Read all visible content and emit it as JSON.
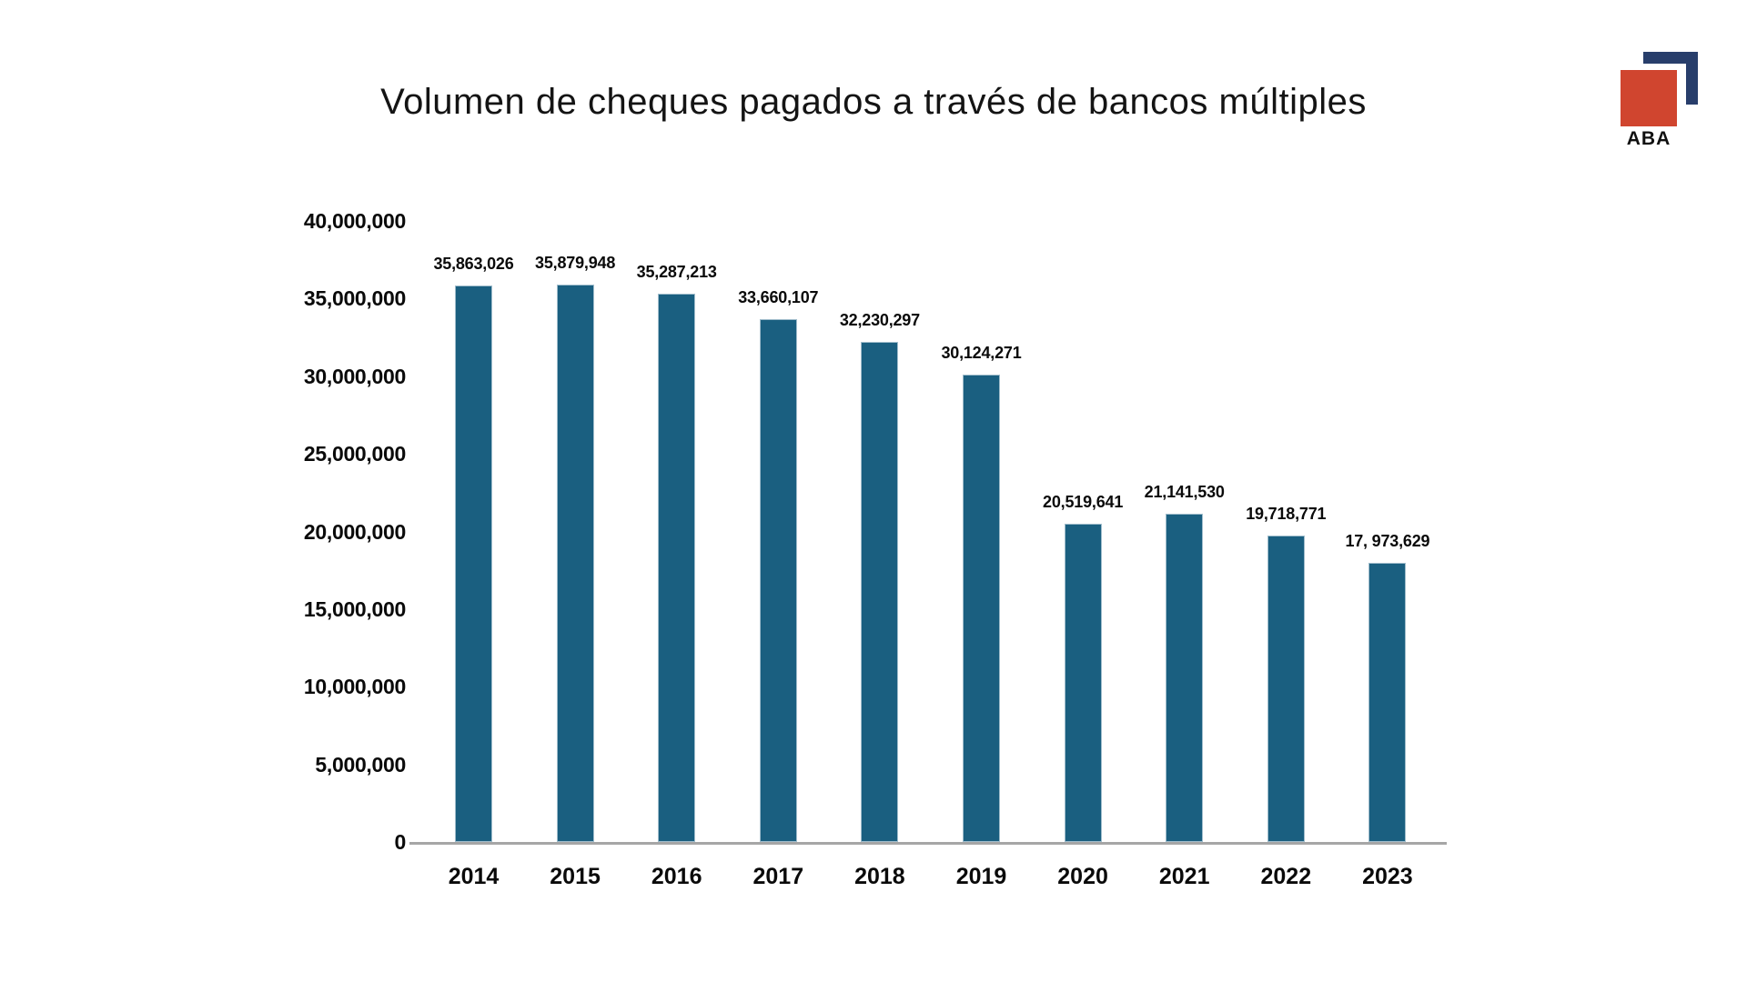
{
  "page": {
    "background": "#FFFFFF"
  },
  "chart_data": {
    "type": "bar",
    "title": "Volumen de cheques pagados a través de bancos múltiples",
    "categories": [
      "2014",
      "2015",
      "2016",
      "2017",
      "2018",
      "2019",
      "2020",
      "2021",
      "2022",
      "2023"
    ],
    "values": [
      35863026,
      35879948,
      35287213,
      33660107,
      32230297,
      30124271,
      20519641,
      21141530,
      19718771,
      17973629
    ],
    "value_labels": [
      "35,863,026",
      "35,879,948",
      "35,287,213",
      "33,660,107",
      "32,230,297",
      "30,124,271",
      "20,519,641",
      "21,141,530",
      "19,718,771",
      "17, 973,629"
    ],
    "xlabel": "",
    "ylabel": "",
    "ylim": [
      0,
      40000000
    ],
    "y_ticks": [
      {
        "value": 40000000,
        "label": "40,000,000"
      },
      {
        "value": 35000000,
        "label": "35,000,000"
      },
      {
        "value": 30000000,
        "label": "30,000,000"
      },
      {
        "value": 25000000,
        "label": "25,000,000"
      },
      {
        "value": 20000000,
        "label": "20,000,000"
      },
      {
        "value": 15000000,
        "label": "15,000,000"
      },
      {
        "value": 10000000,
        "label": "10,000,000"
      },
      {
        "value": 5000000,
        "label": "5,000,000"
      },
      {
        "value": 0,
        "label": "0"
      }
    ],
    "grid": false,
    "legend": false,
    "bar_color": "#1A5F80",
    "bar_edge_color": "#9FBCCB",
    "axis_line_color": "#A6A6A6",
    "value_label_color": "#0A0A0A",
    "tick_label_color": "#0A0A0A"
  },
  "logo": {
    "text": "ABA",
    "square_color": "#D0452F",
    "bracket_color": "#283E6B",
    "text_color": "#111111"
  }
}
